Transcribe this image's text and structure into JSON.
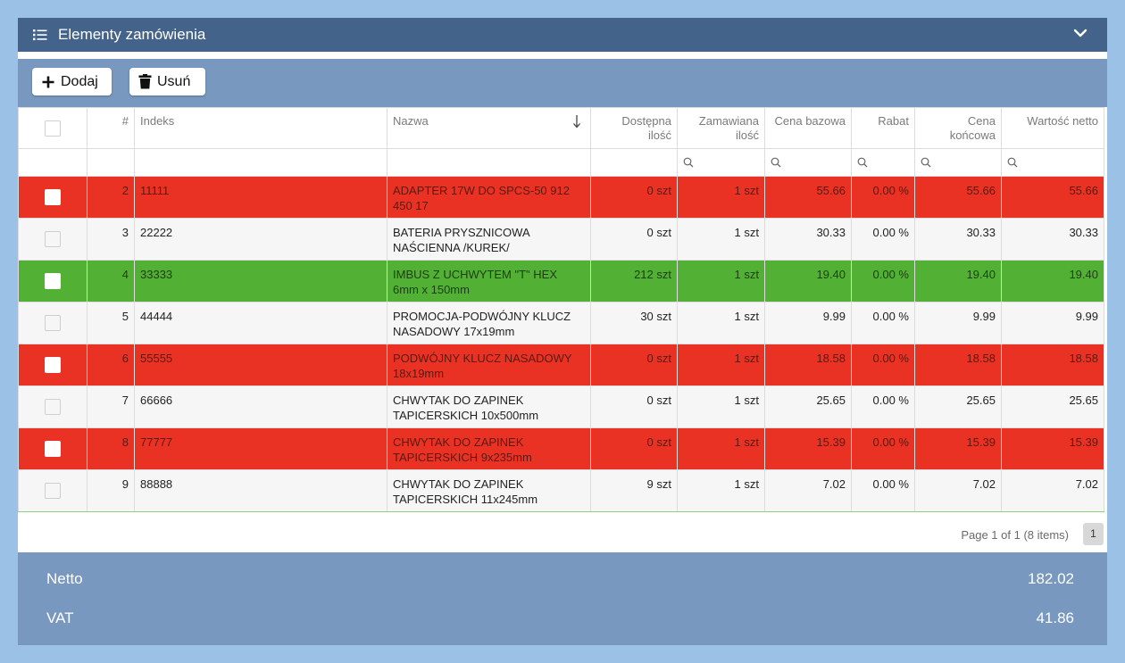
{
  "header": {
    "title": "Elementy zamówienia",
    "icon": "list-icon",
    "collapse_icon": "chevron-down-icon"
  },
  "toolbar": {
    "add_label": "Dodaj",
    "delete_label": "Usuń"
  },
  "table": {
    "columns": [
      "#",
      "Indeks",
      "Nazwa",
      "Dostępna ilość",
      "Zamawiana ilość",
      "Cena bazowa",
      "Rabat",
      "Cena końcowa",
      "Wartość netto"
    ],
    "columns_display": {
      "num": "#",
      "index": "Indeks",
      "name": "Nazwa",
      "avail_1": "Dostępna",
      "avail_2": "ilość",
      "ordered_1": "Zamawiana",
      "ordered_2": "ilość",
      "base": "Cena bazowa",
      "discount": "Rabat",
      "final_1": "Cena",
      "final_2": "końcowa",
      "net": "Wartość netto"
    },
    "rows": [
      {
        "num": "2",
        "index": "11111",
        "name": "ADAPTER 17W DO SPCS-50 912 450 17",
        "avail": "0 szt",
        "ordered": "1 szt",
        "base": "55.66",
        "discount": "0.00 %",
        "final": "55.66",
        "net": "55.66",
        "status": "red"
      },
      {
        "num": "3",
        "index": "22222",
        "name": "BATERIA PRYSZNICOWA NAŚCIENNA /KUREK/",
        "avail": "0 szt",
        "ordered": "1 szt",
        "base": "30.33",
        "discount": "0.00 %",
        "final": "30.33",
        "net": "30.33",
        "status": "white"
      },
      {
        "num": "4",
        "index": "33333",
        "name": "IMBUS Z UCHWYTEM \"T\" HEX 6mm x 150mm",
        "avail": "212 szt",
        "ordered": "1 szt",
        "base": "19.40",
        "discount": "0.00 %",
        "final": "19.40",
        "net": "19.40",
        "status": "green"
      },
      {
        "num": "5",
        "index": "44444",
        "name": "PROMOCJA-PODWÓJNY KLUCZ NASADOWY 17x19mm",
        "avail": "30 szt",
        "ordered": "1 szt",
        "base": "9.99",
        "discount": "0.00 %",
        "final": "9.99",
        "net": "9.99",
        "status": "white"
      },
      {
        "num": "6",
        "index": "55555",
        "name": "PODWÓJNY KLUCZ NASADOWY 18x19mm",
        "avail": "0 szt",
        "ordered": "1 szt",
        "base": "18.58",
        "discount": "0.00 %",
        "final": "18.58",
        "net": "18.58",
        "status": "red"
      },
      {
        "num": "7",
        "index": "66666",
        "name": "CHWYTAK DO ZAPINEK TAPICERSKICH 10x500mm",
        "avail": "0 szt",
        "ordered": "1 szt",
        "base": "25.65",
        "discount": "0.00 %",
        "final": "25.65",
        "net": "25.65",
        "status": "white"
      },
      {
        "num": "8",
        "index": "77777",
        "name": "CHWYTAK DO ZAPINEK TAPICERSKICH 9x235mm",
        "avail": "0 szt",
        "ordered": "1 szt",
        "base": "15.39",
        "discount": "0.00 %",
        "final": "15.39",
        "net": "15.39",
        "status": "red"
      },
      {
        "num": "9",
        "index": "88888",
        "name": "CHWYTAK DO ZAPINEK TAPICERSKICH 11x245mm",
        "avail": "9 szt",
        "ordered": "1 szt",
        "base": "7.02",
        "discount": "0.00 %",
        "final": "7.02",
        "net": "7.02",
        "status": "white"
      }
    ]
  },
  "pager": {
    "info": "Page 1 of 1 (8 items)",
    "current_page": "1"
  },
  "totals": {
    "netto_label": "Netto",
    "netto_value": "182.02",
    "vat_label": "VAT",
    "vat_value": "41.86"
  },
  "colors": {
    "header_bg": "#44638a",
    "toolbar_bg": "#7898c0",
    "row_red": "#e93223",
    "row_green": "#52b134",
    "row_white": "#f6f6f6",
    "page_bg": "#9cc1e6"
  }
}
